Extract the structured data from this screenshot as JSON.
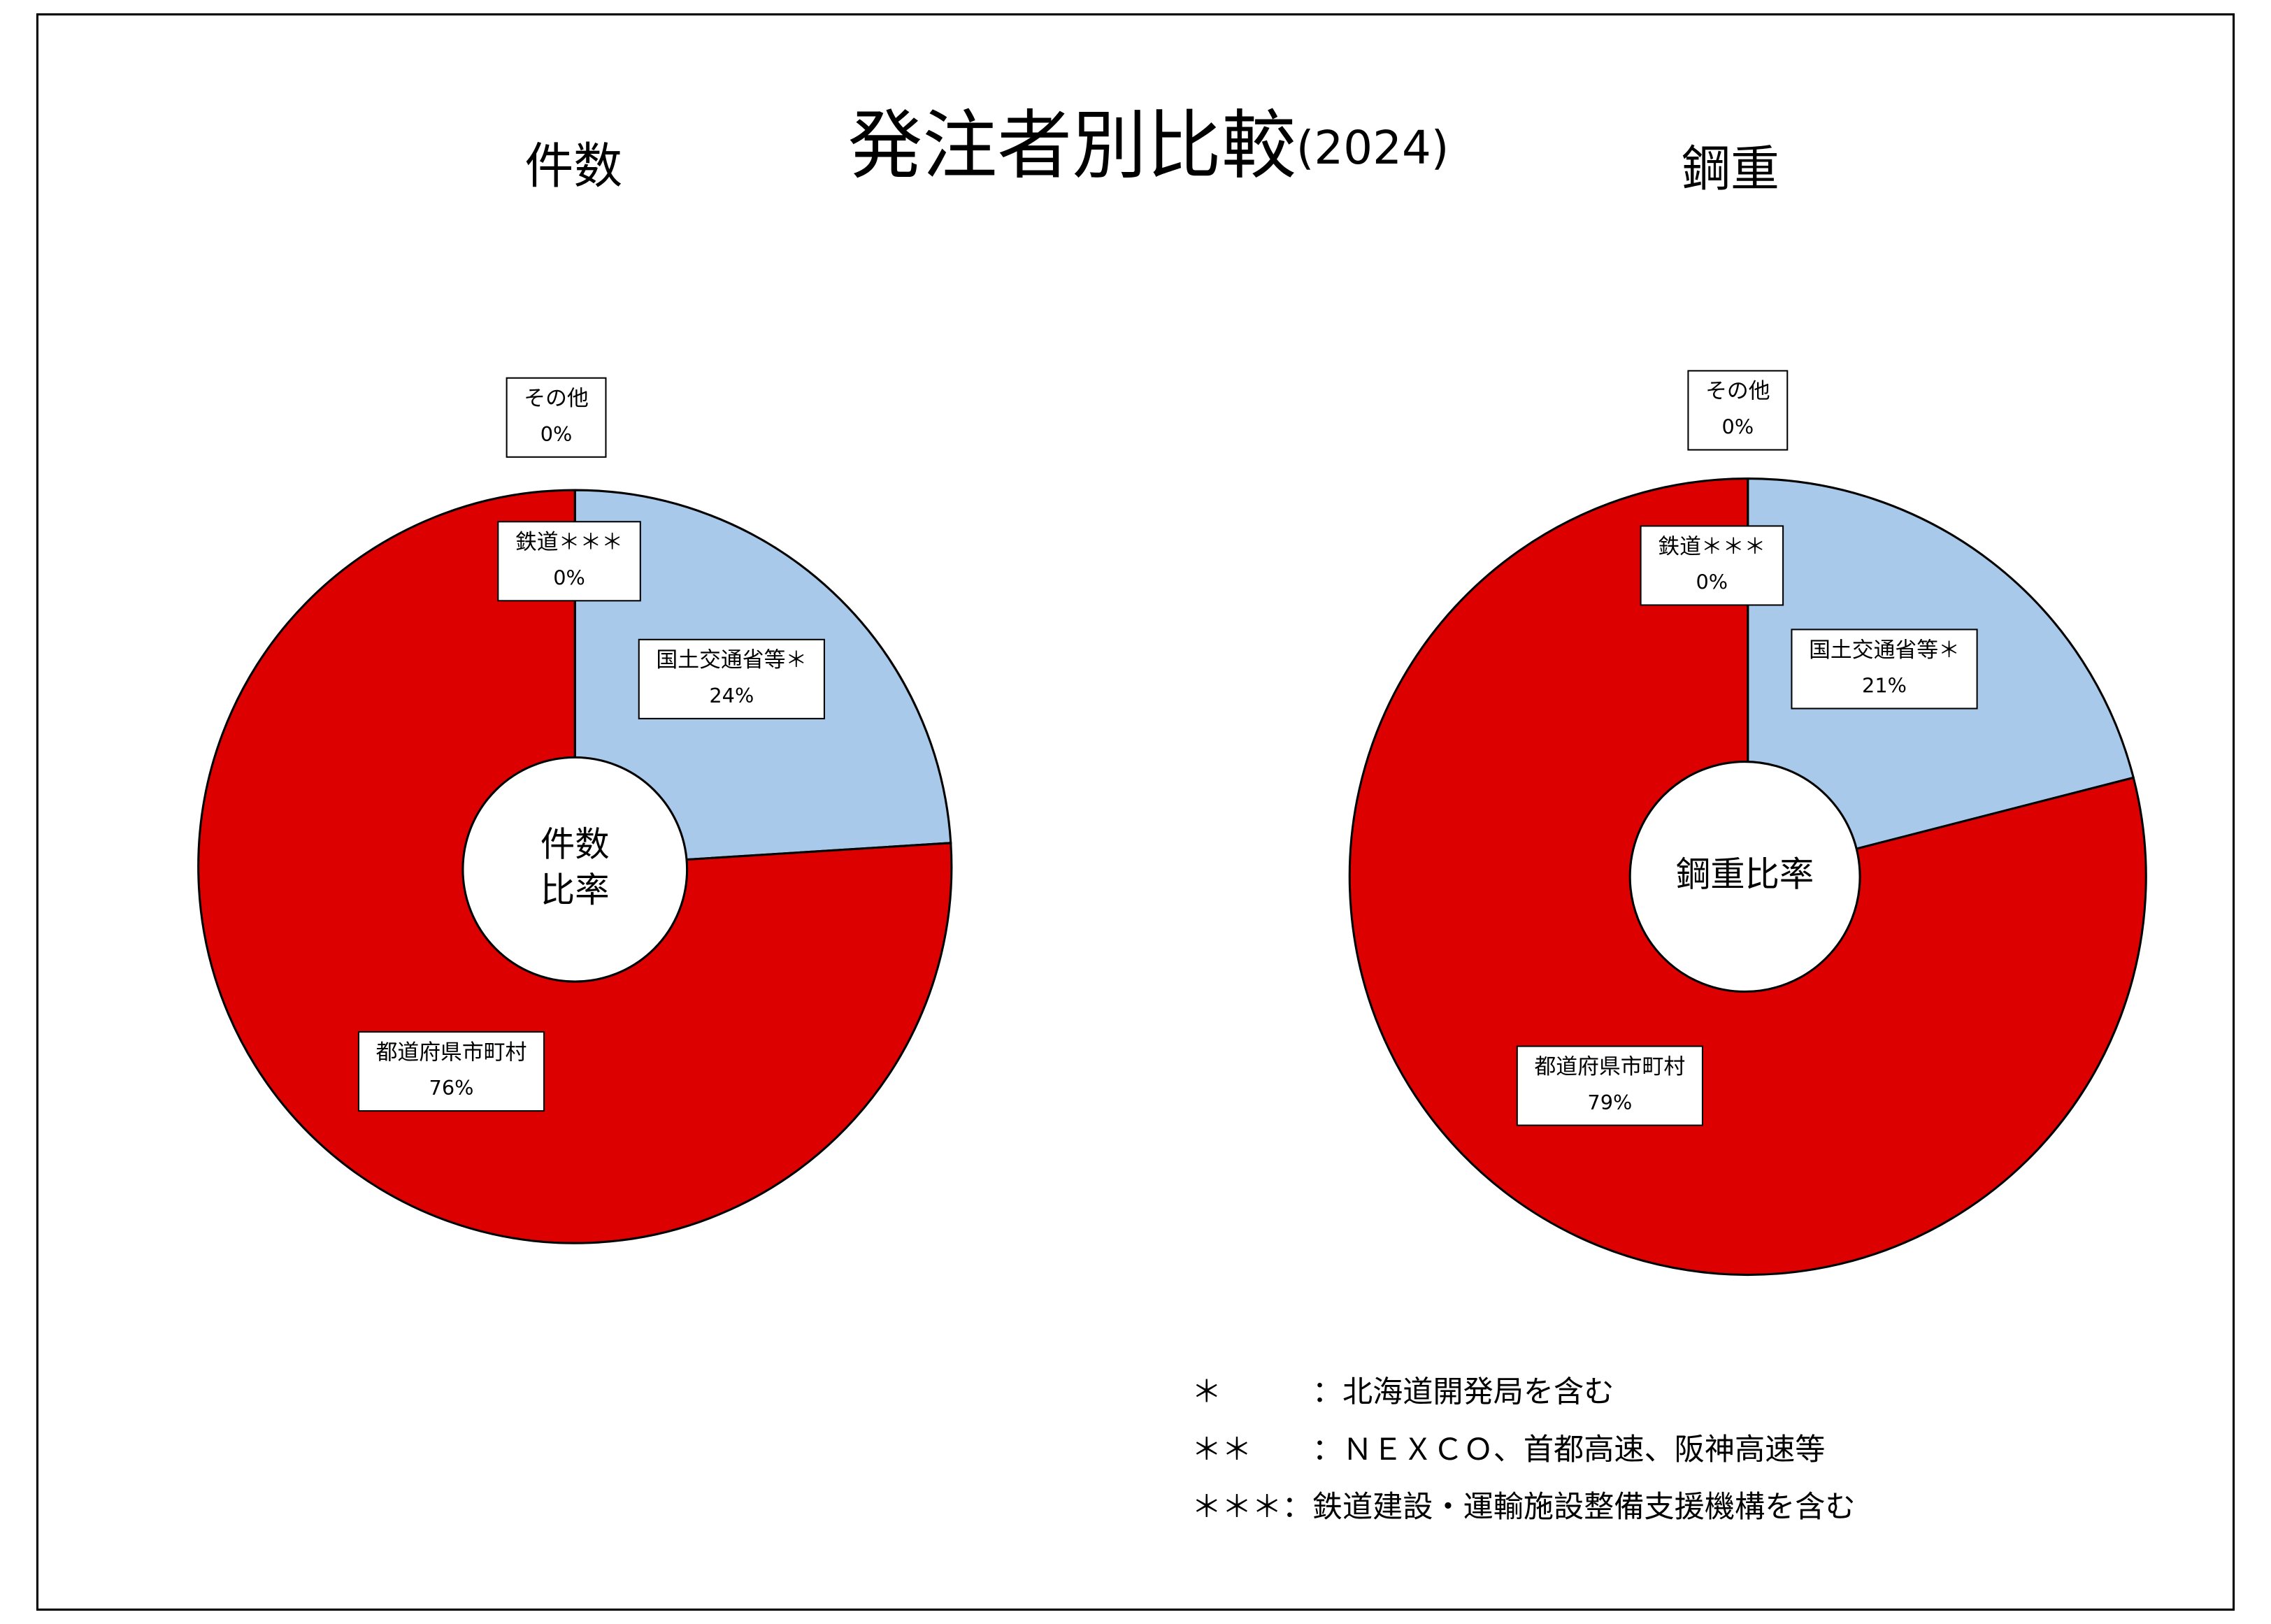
{
  "title": "発注者別比較",
  "subtitle": "(2024)",
  "chart_data": [
    {
      "type": "pie",
      "title": "件数",
      "center_label": [
        "件数",
        "比率"
      ],
      "categories": [
        "国土交通省等＊",
        "都道府県市町村",
        "鉄道＊＊＊",
        "その他"
      ],
      "values": [
        24,
        76,
        0,
        0
      ],
      "value_labels": [
        "24%",
        "76%",
        "0%",
        "0%"
      ],
      "colors": [
        "#a9c9eb",
        "#dd0000",
        "#ffc000",
        "#7f7f7f"
      ]
    },
    {
      "type": "pie",
      "title": "鋼重",
      "center_label": [
        "鋼重比率"
      ],
      "categories": [
        "国土交通省等＊",
        "都道府県市町村",
        "鉄道＊＊＊",
        "その他"
      ],
      "values": [
        21,
        79,
        0,
        0
      ],
      "value_labels": [
        "21%",
        "79%",
        "0%",
        "0%"
      ],
      "colors": [
        "#a9c9eb",
        "#dd0000",
        "#ffc000",
        "#7f7f7f"
      ]
    }
  ],
  "notes": [
    "＊　　　：北海道開発局を含む",
    "＊＊　　：ＮＥＸＣＯ、首都高速、阪神高速等",
    "＊＊＊：鉄道建設・運輸施設整備支援機構を含む"
  ]
}
